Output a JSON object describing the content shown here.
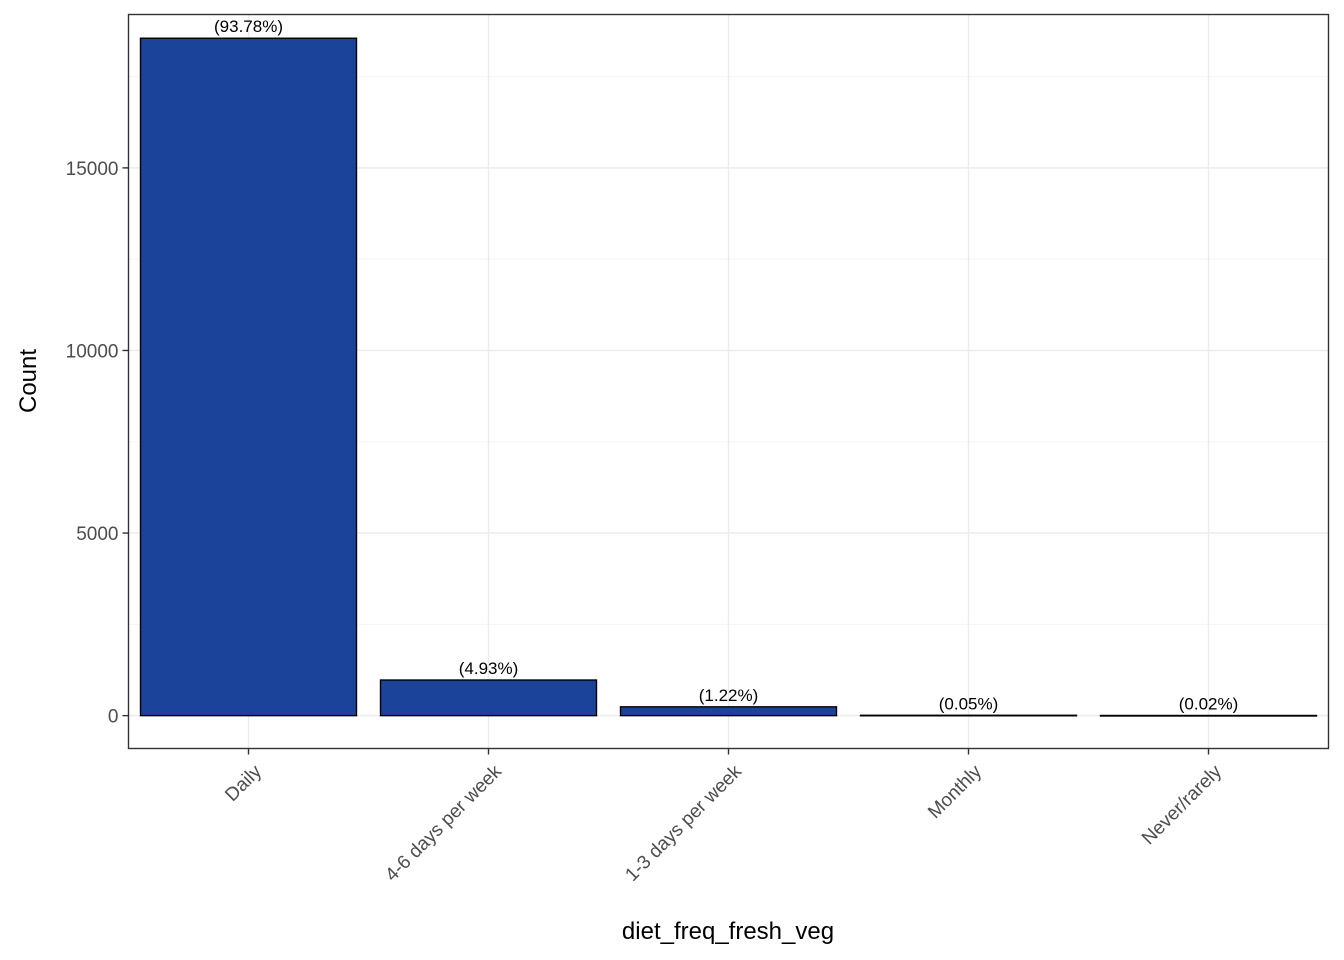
{
  "chart_data": {
    "type": "bar",
    "categories": [
      "Daily",
      "4-6 days per week",
      "1-3 days per week",
      "Monthly",
      "Never/rarely"
    ],
    "values": [
      18550,
      975,
      241,
      10,
      4
    ],
    "data_labels": [
      "(93.78%)",
      "(4.93%)",
      "(1.22%)",
      "(0.05%)",
      "(0.02%)"
    ],
    "xlabel": "diet_freq_fresh_veg",
    "ylabel": "Count",
    "ylim": [
      -900,
      19200
    ],
    "yticks": [
      0,
      5000,
      10000,
      15000
    ],
    "ytick_labels": [
      "0",
      "5000",
      "10000",
      "15000"
    ],
    "grid": true,
    "colors": {
      "bar_fill": "#1a4399",
      "bar_outline": "#000000",
      "grid_major": "#ebebeb",
      "grid_minor": "#f5f5f5",
      "panel_border": "#333333",
      "tick_text": "#4d4d4d"
    }
  }
}
